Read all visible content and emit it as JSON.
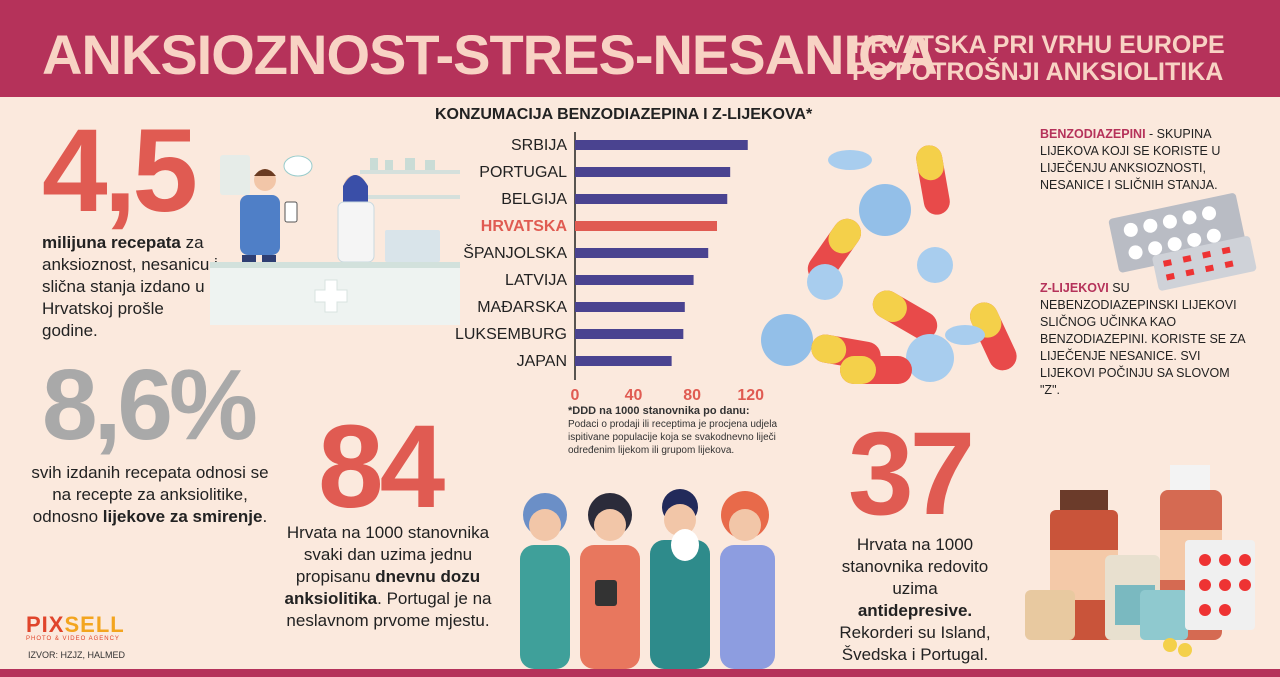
{
  "header": {
    "title": "ANKSIOZNOST-STRES-NESANICA",
    "subtitle_line1": "HRVATSKA PRI VRHU EUROPE",
    "subtitle_line2": "PO POTROŠNJI ANKSIOLITIKA"
  },
  "stat1": {
    "number": "4,5",
    "bold": "milijuna recepata",
    "text": " za anksioznost, nesanicu i slična stanja izdano u Hrvatskoj prošle godine."
  },
  "stat2": {
    "number": "8,6%",
    "text": "svih izdanih recepata odnosi se na recepte za anksiolitike, odnosno ",
    "bold": "lijekove za smirenje",
    "end": "."
  },
  "stat3": {
    "number": "84",
    "text1": "Hrvata na 1000 stanovnika svaki dan uzima jednu propisanu ",
    "bold1": "dnevnu dozu anksiolitika",
    "text2": ". Portugal je na neslavnom prvome mjestu."
  },
  "stat4": {
    "number": "37",
    "text1": "Hrvata na 1000 stanovnika redovito uzima ",
    "bold1": "antidepresive.",
    "text2": " Rekorderi su Island, Švedska i Portugal."
  },
  "definitions": {
    "benzo_kw": "BENZODIAZEPINI",
    "benzo_text": " - SKUPINA LIJEKOVA KOJI SE KORISTE U LIJEČENJU ANKSIOZNOSTI, NESANICE I SLIČNIH STANJA.",
    "z_kw": "Z-LIJEKOVI",
    "z_text": " SU NEBENZODIAZEPINSKI LIJEKOVI SLIČNOG UČINKA KAO BENZODIAZEPINI. KORISTE SE ZA LIJEČENJE NESANICE. SVI LIJEKOVI POČINJU SA SLOVOM \"Z\"."
  },
  "footnote": {
    "head": "*DDD na 1000 stanovnika po danu:",
    "body": "Podaci o prodaji ili receptima je procjena udjela ispitivane populacije koja se svakodnevno liječi određenim lijekom ili grupom lijekova."
  },
  "logo": {
    "part1": "PIX",
    "part2": "SELL",
    "tagline": "PHOTO & VIDEO AGENCY"
  },
  "source": "IZVOR: HZJZ, HALMED",
  "colors": {
    "accent": "#b5325a",
    "bar": "#4a4390",
    "highlight": "#e05b52",
    "background": "#fbe9dd"
  },
  "chart_data": {
    "type": "bar",
    "orientation": "horizontal",
    "title": "KONZUMACIJA BENZODIAZEPINA I Z-LIJEKOVA*",
    "categories": [
      "SRBIJA",
      "PORTUGAL",
      "BELGIJA",
      "HRVATSKA",
      "ŠPANJOLSKA",
      "LATVIJA",
      "MAĐARSKA",
      "LUKSEMBURG",
      "JAPAN"
    ],
    "values": [
      118,
      106,
      104,
      97,
      91,
      81,
      75,
      74,
      66
    ],
    "highlight": "HRVATSKA",
    "xticks": [
      0,
      40,
      80,
      120
    ],
    "xlim": [
      0,
      125
    ],
    "grid": false
  }
}
